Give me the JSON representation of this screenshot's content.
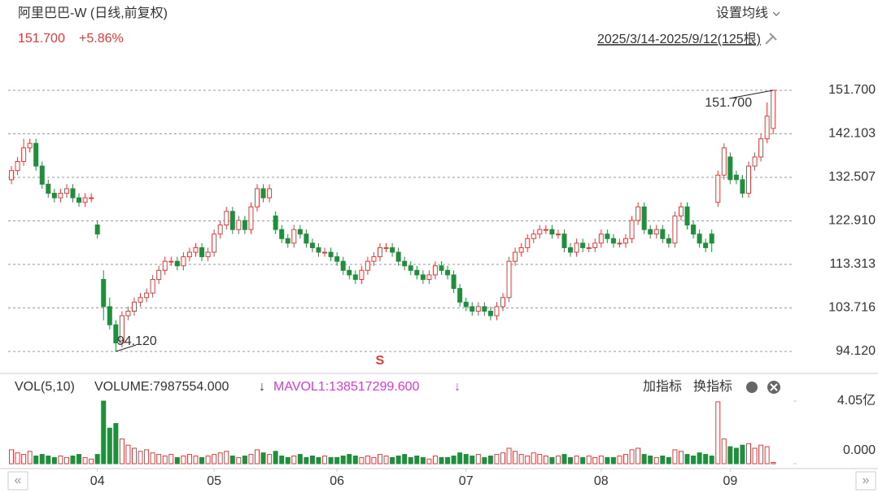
{
  "chart_data": {
    "type": "candlestick",
    "title": "阿里巴巴-W (日线,前复权)",
    "last_price": "151.700",
    "change": "+5.86%",
    "ma_setting": "设置均线",
    "range_label": "2025/3/14-2025/9/12(125根)",
    "up_color": "#e23a3a",
    "down_color": "#1f8f3c",
    "grid": true,
    "ylim": [
      94.12,
      151.7
    ],
    "yticks": [
      {
        "value": 94.12,
        "label": "94.120"
      },
      {
        "value": 103.716,
        "label": "103.716"
      },
      {
        "value": 113.313,
        "label": "113.313"
      },
      {
        "value": 122.91,
        "label": "122.910"
      },
      {
        "value": 132.507,
        "label": "132.507"
      },
      {
        "value": 142.103,
        "label": "142.103"
      },
      {
        "value": 151.7,
        "label": "151.700"
      }
    ],
    "xticks": [
      {
        "value": 14,
        "label": "04"
      },
      {
        "value": 33,
        "label": "05"
      },
      {
        "value": 53,
        "label": "06"
      },
      {
        "value": 74,
        "label": "07"
      },
      {
        "value": 96,
        "label": "08"
      },
      {
        "value": 117,
        "label": "09"
      }
    ],
    "annotations": [
      {
        "index": 124,
        "value": 151.7,
        "label": "151.700"
      },
      {
        "index": 17,
        "value": 94.12,
        "label": "94.120"
      }
    ],
    "signal": {
      "index": 56,
      "label": "S"
    },
    "candles": [
      [
        132,
        135,
        131,
        134
      ],
      [
        134,
        137,
        133,
        136
      ],
      [
        136,
        141,
        135,
        139
      ],
      [
        139,
        141,
        138,
        140
      ],
      [
        140,
        141,
        134,
        135
      ],
      [
        135,
        136,
        130,
        131
      ],
      [
        131,
        132,
        128,
        129
      ],
      [
        129,
        130,
        127,
        128
      ],
      [
        128,
        130,
        127,
        129
      ],
      [
        129,
        131,
        128,
        130
      ],
      [
        130,
        131,
        127,
        128
      ],
      [
        128,
        129,
        126,
        127
      ],
      [
        127,
        129,
        126,
        128
      ],
      [
        128,
        129,
        127,
        128
      ],
      [
        122,
        123,
        119,
        120
      ],
      [
        110,
        112,
        101,
        104
      ],
      [
        104,
        106,
        99,
        100
      ],
      [
        100,
        101,
        94.12,
        96
      ],
      [
        96,
        103,
        95,
        102
      ],
      [
        102,
        104,
        101,
        103
      ],
      [
        103,
        106,
        102,
        105
      ],
      [
        105,
        107,
        104,
        106
      ],
      [
        106,
        108,
        105,
        107
      ],
      [
        107,
        111,
        106,
        110
      ],
      [
        110,
        113,
        109,
        112
      ],
      [
        112,
        115,
        111,
        114
      ],
      [
        114,
        115,
        113,
        114
      ],
      [
        114,
        115,
        112,
        113
      ],
      [
        113,
        116,
        112,
        115
      ],
      [
        115,
        117,
        114,
        116
      ],
      [
        116,
        118,
        115,
        117
      ],
      [
        117,
        118,
        114,
        115
      ],
      [
        115,
        117,
        114,
        116
      ],
      [
        116,
        121,
        115,
        120
      ],
      [
        120,
        123,
        119,
        122
      ],
      [
        122,
        126,
        121,
        125
      ],
      [
        125,
        126,
        120,
        121
      ],
      [
        121,
        124,
        120,
        123
      ],
      [
        123,
        124,
        120,
        121
      ],
      [
        121,
        127,
        120,
        126
      ],
      [
        126,
        131,
        125,
        130
      ],
      [
        130,
        131,
        127,
        128
      ],
      [
        128,
        131,
        127,
        130
      ],
      [
        124,
        125,
        120,
        121
      ],
      [
        121,
        122,
        118,
        119
      ],
      [
        119,
        120,
        117,
        118
      ],
      [
        118,
        122,
        117,
        121
      ],
      [
        121,
        122,
        119,
        120
      ],
      [
        120,
        121,
        117,
        118
      ],
      [
        118,
        119,
        116,
        117
      ],
      [
        117,
        118,
        115,
        116
      ],
      [
        116,
        117,
        115,
        116
      ],
      [
        116,
        117,
        114,
        115
      ],
      [
        115,
        116,
        113,
        114
      ],
      [
        114,
        115,
        111,
        112
      ],
      [
        112,
        113,
        110,
        111
      ],
      [
        111,
        112,
        109,
        110
      ],
      [
        110,
        113,
        109,
        112
      ],
      [
        112,
        115,
        111,
        114
      ],
      [
        114,
        116,
        113,
        115
      ],
      [
        115,
        118,
        114,
        117
      ],
      [
        117,
        118,
        116,
        117
      ],
      [
        117,
        118,
        115,
        116
      ],
      [
        116,
        117,
        113,
        114
      ],
      [
        114,
        115,
        112,
        113
      ],
      [
        113,
        114,
        111,
        112
      ],
      [
        112,
        113,
        110,
        111
      ],
      [
        111,
        112,
        109,
        110
      ],
      [
        110,
        112,
        109,
        111
      ],
      [
        111,
        114,
        110,
        113
      ],
      [
        113,
        114,
        111,
        112
      ],
      [
        112,
        113,
        110,
        111
      ],
      [
        111,
        112,
        107,
        108
      ],
      [
        108,
        109,
        104,
        105
      ],
      [
        105,
        106,
        103,
        104
      ],
      [
        104,
        105,
        102,
        103
      ],
      [
        103,
        105,
        102,
        104
      ],
      [
        104,
        105,
        102,
        103
      ],
      [
        103,
        104,
        101,
        102
      ],
      [
        102,
        105,
        101,
        104
      ],
      [
        104,
        107,
        103,
        106
      ],
      [
        106,
        115,
        105,
        114
      ],
      [
        114,
        117,
        113,
        116
      ],
      [
        116,
        118,
        115,
        117
      ],
      [
        117,
        120,
        116,
        119
      ],
      [
        119,
        121,
        118,
        120
      ],
      [
        120,
        122,
        119,
        121
      ],
      [
        121,
        122,
        120,
        121
      ],
      [
        121,
        122,
        119,
        120
      ],
      [
        120,
        121,
        119,
        120
      ],
      [
        120,
        121,
        116,
        117
      ],
      [
        117,
        118,
        115,
        116
      ],
      [
        116,
        119,
        115,
        118
      ],
      [
        118,
        119,
        116,
        117
      ],
      [
        117,
        118,
        116,
        117
      ],
      [
        117,
        119,
        116,
        118
      ],
      [
        118,
        121,
        117,
        120
      ],
      [
        120,
        121,
        118,
        119
      ],
      [
        119,
        120,
        117,
        118
      ],
      [
        118,
        119,
        117,
        118
      ],
      [
        118,
        120,
        117,
        119
      ],
      [
        119,
        124,
        118,
        123
      ],
      [
        123,
        127,
        122,
        126
      ],
      [
        126,
        127,
        120,
        121
      ],
      [
        121,
        122,
        119,
        120
      ],
      [
        120,
        122,
        119,
        121
      ],
      [
        121,
        122,
        118,
        119
      ],
      [
        119,
        120,
        117,
        118
      ],
      [
        118,
        125,
        117,
        124
      ],
      [
        124,
        127,
        123,
        126
      ],
      [
        126,
        127,
        121,
        122
      ],
      [
        122,
        123,
        119,
        120
      ],
      [
        120,
        121,
        117,
        118
      ],
      [
        118,
        119,
        116,
        117
      ],
      [
        120,
        121,
        116,
        118
      ],
      [
        127,
        134,
        126,
        133
      ],
      [
        133,
        140,
        132,
        139
      ],
      [
        137,
        138,
        131,
        132
      ],
      [
        133,
        134,
        131,
        132
      ],
      [
        132,
        133,
        128,
        129
      ],
      [
        129,
        136,
        128,
        135
      ],
      [
        135,
        138,
        134,
        137
      ],
      [
        137,
        142,
        136,
        141
      ],
      [
        141,
        149,
        140,
        146
      ],
      [
        143.3,
        151.7,
        142,
        151.7
      ]
    ],
    "volume_panel": {
      "label": "VOL(5,10)",
      "volume_label": "VOLUME:7987554.000",
      "mavol_label": "MAVOL1:138517299.600",
      "add_indicator": "加指标",
      "switch_indicator": "换指标",
      "ylim": [
        0,
        4.05
      ],
      "yticks": [
        {
          "value": 0,
          "label": "0.000"
        },
        {
          "value": 4.05,
          "label": "4.05亿"
        }
      ],
      "values": [
        0.9,
        0.7,
        0.6,
        0.8,
        0.5,
        0.6,
        0.5,
        0.4,
        0.5,
        0.4,
        0.5,
        0.6,
        0.4,
        0.3,
        0.6,
        4.05,
        2.3,
        2.6,
        1.6,
        1.2,
        1.0,
        0.8,
        0.9,
        0.7,
        0.6,
        0.5,
        0.6,
        0.4,
        0.5,
        0.6,
        0.5,
        0.4,
        0.5,
        0.6,
        0.7,
        0.8,
        0.5,
        0.4,
        0.5,
        0.6,
        0.9,
        0.7,
        0.6,
        0.8,
        0.5,
        0.4,
        0.5,
        0.6,
        0.4,
        0.5,
        0.4,
        0.5,
        0.4,
        0.4,
        0.5,
        0.6,
        0.5,
        0.4,
        0.5,
        0.4,
        0.6,
        0.5,
        0.4,
        0.5,
        0.6,
        0.4,
        0.5,
        0.4,
        0.3,
        0.5,
        0.4,
        0.4,
        0.5,
        0.7,
        0.6,
        0.5,
        0.6,
        0.4,
        0.5,
        0.6,
        0.7,
        1.0,
        0.8,
        0.6,
        0.5,
        0.7,
        0.6,
        0.5,
        0.4,
        0.5,
        0.6,
        0.4,
        0.5,
        0.4,
        0.5,
        0.4,
        0.5,
        0.4,
        0.4,
        0.5,
        0.6,
        0.9,
        1.0,
        0.6,
        0.5,
        0.4,
        0.5,
        0.4,
        0.9,
        0.8,
        0.6,
        0.5,
        0.7,
        0.6,
        0.5,
        4.0,
        1.6,
        1.1,
        1.0,
        1.2,
        1.3,
        1.0,
        1.2,
        1.1,
        0.08
      ]
    }
  }
}
